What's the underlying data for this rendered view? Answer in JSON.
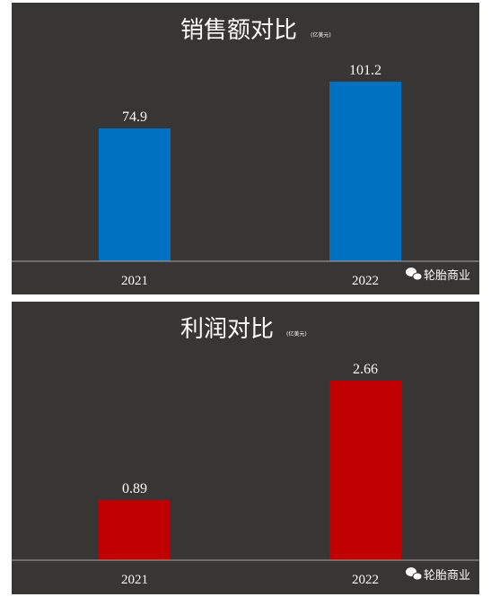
{
  "chart_data": [
    {
      "type": "bar",
      "title": "销售额对比",
      "subtitle": "(亿美元)",
      "categories": [
        "2021",
        "2022"
      ],
      "values": [
        74.9,
        101.2
      ],
      "value_labels": [
        "74.9",
        "101.2"
      ],
      "ylim": [
        0,
        101.2
      ],
      "color": "#0070c0",
      "grid": false,
      "watermark": "轮胎商业"
    },
    {
      "type": "bar",
      "title": "利润对比",
      "subtitle": "(亿美元)",
      "categories": [
        "2021",
        "2022"
      ],
      "values": [
        0.89,
        2.66
      ],
      "value_labels": [
        "0.89",
        "2.66"
      ],
      "ylim": [
        0,
        2.66
      ],
      "color": "#c00000",
      "grid": false,
      "watermark": "轮胎商业"
    }
  ],
  "background_color": "#383634"
}
